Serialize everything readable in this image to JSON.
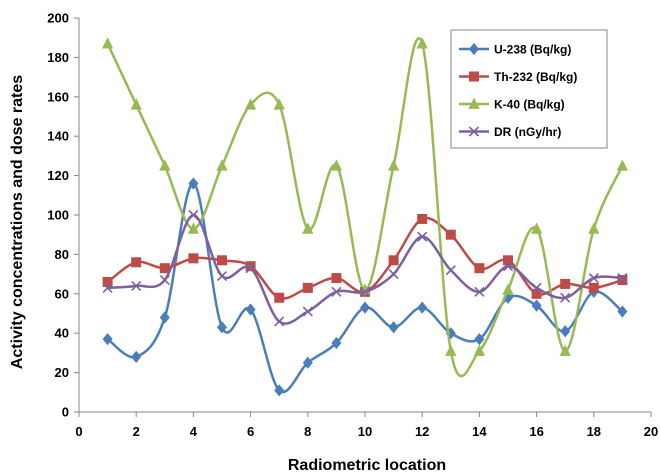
{
  "chart_data": {
    "type": "scatter",
    "title": "",
    "xlabel": "Radiometric location",
    "ylabel": "Activity concentrations and dose rates",
    "xlim": [
      0,
      20
    ],
    "ylim": [
      0,
      200
    ],
    "xticks": [
      0,
      2,
      4,
      6,
      8,
      10,
      12,
      14,
      16,
      18,
      20
    ],
    "yticks": [
      0,
      20,
      40,
      60,
      80,
      100,
      120,
      140,
      160,
      180,
      200
    ],
    "grid": false,
    "legend_position": "top-right",
    "line_style": "smooth lines with markers",
    "x": [
      1,
      2,
      3,
      4,
      5,
      6,
      7,
      8,
      9,
      10,
      11,
      12,
      13,
      14,
      15,
      16,
      17,
      18,
      19
    ],
    "series": [
      {
        "name": "U-238 (Bq/kg)",
        "color": "#4a7ebb",
        "marker": "diamond",
        "values": [
          37,
          28,
          48,
          116,
          43,
          52,
          11,
          25,
          35,
          53,
          43,
          53,
          40,
          37,
          58,
          54,
          41,
          61,
          51
        ]
      },
      {
        "name": "Th-232 (Bq/kg)",
        "color": "#be4b48",
        "marker": "square",
        "values": [
          66,
          76,
          73,
          78,
          77,
          74,
          58,
          63,
          68,
          61,
          77,
          98,
          90,
          73,
          77,
          60,
          65,
          63,
          67
        ]
      },
      {
        "name": "K-40 (Bq/kg)",
        "color": "#98b954",
        "marker": "triangle",
        "values": [
          187,
          156,
          125,
          93,
          125,
          156,
          156,
          93,
          125,
          62,
          125,
          187,
          31,
          31,
          62,
          93,
          31,
          93,
          125
        ]
      },
      {
        "name": "DR (nGy/hr)",
        "color": "#7d60a0",
        "marker": "x",
        "values": [
          63,
          64,
          67,
          100,
          69,
          73,
          46,
          51,
          61,
          61,
          70,
          89,
          72,
          61,
          74,
          63,
          58,
          68,
          68
        ]
      }
    ]
  }
}
